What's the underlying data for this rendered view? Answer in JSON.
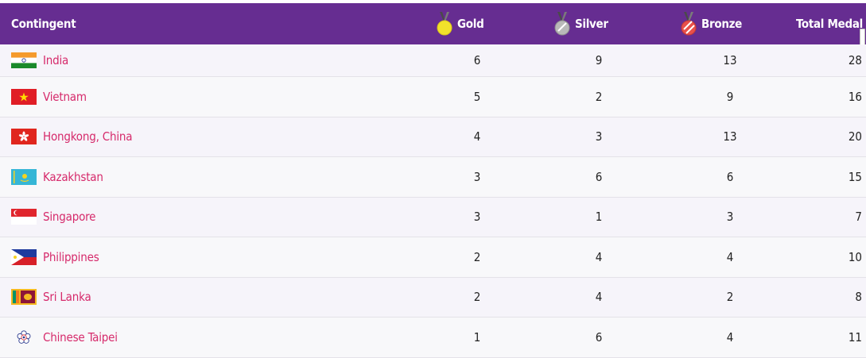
{
  "table": {
    "headers": {
      "contingent": "Contingent",
      "gold": "Gold",
      "silver": "Silver",
      "bronze": "Bronze",
      "total": "Total Medal"
    },
    "rows": [
      {
        "country": "India",
        "flag": "india-flag-icon",
        "gold": "6",
        "silver": "9",
        "bronze": "13",
        "total": "28"
      },
      {
        "country": "Vietnam",
        "flag": "vietnam-flag-icon",
        "gold": "5",
        "silver": "2",
        "bronze": "9",
        "total": "16"
      },
      {
        "country": "Hongkong, China",
        "flag": "hongkong-flag-icon",
        "gold": "4",
        "silver": "3",
        "bronze": "13",
        "total": "20"
      },
      {
        "country": "Kazakhstan",
        "flag": "kazakhstan-flag-icon",
        "gold": "3",
        "silver": "6",
        "bronze": "6",
        "total": "15"
      },
      {
        "country": "Singapore",
        "flag": "singapore-flag-icon",
        "gold": "3",
        "silver": "1",
        "bronze": "3",
        "total": "7"
      },
      {
        "country": "Philippines",
        "flag": "philippines-flag-icon",
        "gold": "2",
        "silver": "4",
        "bronze": "4",
        "total": "10"
      },
      {
        "country": "Sri Lanka",
        "flag": "srilanka-flag-icon",
        "gold": "2",
        "silver": "4",
        "bronze": "2",
        "total": "8"
      },
      {
        "country": "Chinese Taipei",
        "flag": "chinese-taipei-flag-icon",
        "gold": "1",
        "silver": "6",
        "bronze": "4",
        "total": "11"
      }
    ]
  },
  "colors": {
    "header_bg": "#662d91",
    "country_text": "#d62a6b",
    "gold_medal": "#f2e12b",
    "silver_medal": "#b9b9b9",
    "bronze_medal": "#e8504a"
  }
}
